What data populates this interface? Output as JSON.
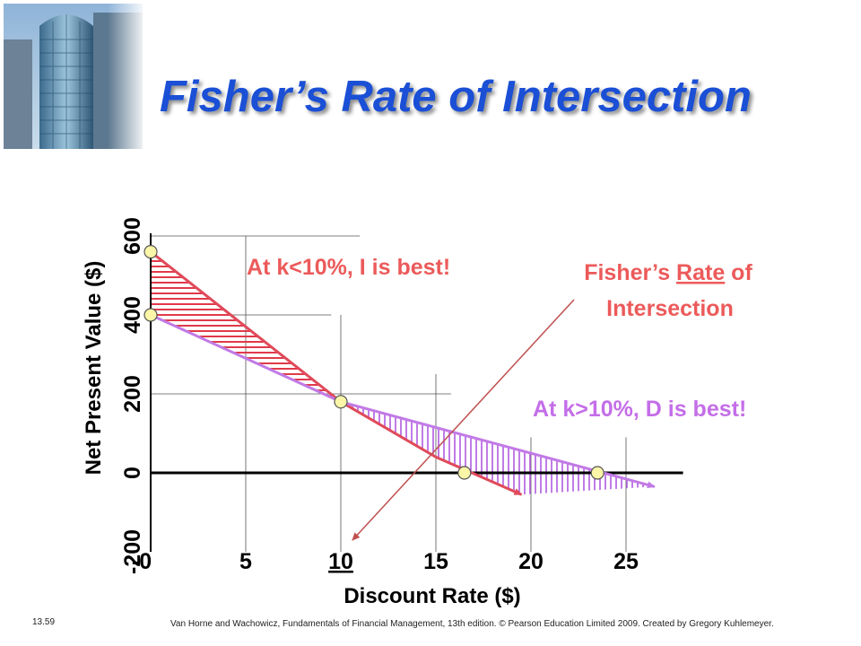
{
  "slide": {
    "title": "Fisher’s Rate of Intersection",
    "footer_left": "13.59",
    "footer_right": "Van Horne and Wachowicz, Fundamentals of Financial Management, 13th edition. © Pearson Education Limited 2009. Created by Gregory Kuhlemeyer."
  },
  "chart_data": {
    "type": "line",
    "xlabel": "Discount Rate ($)",
    "ylabel": "Net Present Value ($)",
    "xlim": [
      0,
      28
    ],
    "ylim": [
      -200,
      600
    ],
    "x_tick_values": [
      0,
      5,
      10,
      15,
      20,
      25
    ],
    "x_tick_labels": [
      "-0",
      "5",
      "10",
      "15",
      "20",
      "25"
    ],
    "y_tick_values": [
      -200,
      0,
      200,
      400,
      600
    ],
    "y_tick_labels": [
      "-200",
      "0",
      "200",
      "400",
      "600"
    ],
    "highlight_x_tick": "10",
    "series": [
      {
        "color": "#e04a5a",
        "x": [
          0,
          10,
          15,
          19.5
        ],
        "y": [
          560,
          180,
          40,
          -55
        ]
      },
      {
        "color": "#c27ae6",
        "x": [
          0,
          10,
          26.5
        ],
        "y": [
          400,
          180,
          -35
        ]
      }
    ],
    "points": [
      {
        "x": 0,
        "y": 560
      },
      {
        "x": 0,
        "y": 400
      },
      {
        "x": 10,
        "y": 180
      },
      {
        "x": 16.5,
        "y": 0
      },
      {
        "x": 23.5,
        "y": 0
      }
    ],
    "annotations": {
      "left_region": "At k<10%, I is best!",
      "right_region": "At k>10%, D is best!",
      "callout_line1_pre": "Fisher’s ",
      "callout_line1_underlined": "Rate",
      "callout_line1_post": " of",
      "callout_line2": "Intersection"
    },
    "colors": {
      "annot_red": "#ec5a5a",
      "annot_purple": "#c46ee8",
      "arrow": "#c05050"
    }
  }
}
